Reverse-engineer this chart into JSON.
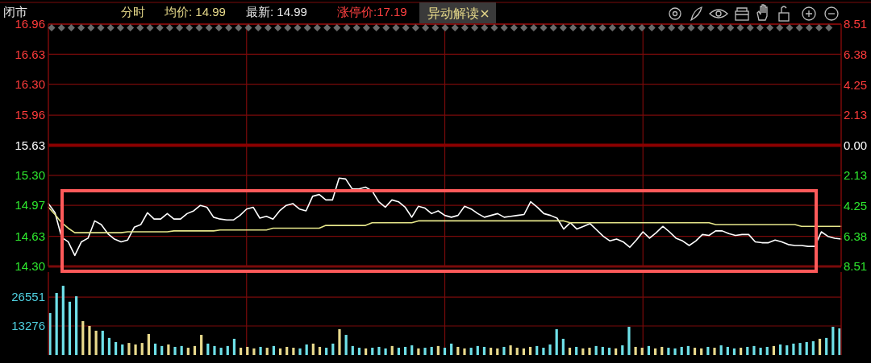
{
  "chart_data": [
    {
      "type": "line",
      "annotations": [
        "闭市",
        "分时",
        "均价: 14.99",
        "最新: 14.99",
        "涨停价:17.19",
        "异动解读"
      ],
      "categories": [
        null,
        null,
        null,
        null,
        null,
        null,
        null,
        null,
        null,
        null,
        null,
        null,
        null,
        null,
        null,
        null,
        null,
        null,
        null,
        null,
        null,
        null,
        null,
        null,
        null,
        null,
        null,
        null,
        null,
        null,
        null,
        null,
        null,
        null,
        null,
        null,
        null,
        null,
        null,
        null,
        null,
        null,
        null,
        null,
        null,
        null,
        null,
        null,
        null,
        null,
        null,
        null,
        null,
        null,
        null,
        null,
        null,
        null,
        null,
        null,
        null,
        null,
        null,
        null,
        null,
        null,
        null,
        null,
        null,
        null,
        null,
        null,
        null,
        null,
        null,
        null,
        null,
        null,
        null,
        null,
        null,
        null,
        null,
        null,
        null,
        null,
        null,
        null,
        null,
        null,
        null,
        null,
        null,
        null,
        null,
        null,
        null,
        null,
        null,
        null,
        null,
        null,
        null,
        null,
        null,
        null,
        null,
        null,
        null,
        null,
        null,
        null,
        null,
        null,
        null,
        null,
        null,
        null,
        null,
        null,
        null
      ],
      "series": [
        {
          "color": "#ffffff",
          "values": [
            14.99,
            14.89,
            14.62,
            14.57,
            14.42,
            14.57,
            14.61,
            14.8,
            14.76,
            14.66,
            14.6,
            14.57,
            14.59,
            14.73,
            14.76,
            14.89,
            14.82,
            14.82,
            14.88,
            14.82,
            14.82,
            14.88,
            14.91,
            14.97,
            14.95,
            14.84,
            14.82,
            14.81,
            14.81,
            14.86,
            14.93,
            14.95,
            14.83,
            14.85,
            14.82,
            14.91,
            14.97,
            14.99,
            14.93,
            14.91,
            15.07,
            15.09,
            15.03,
            15.03,
            15.27,
            15.26,
            15.15,
            15.15,
            15.17,
            15.13,
            15.01,
            14.95,
            15.03,
            15.01,
            14.95,
            14.84,
            14.96,
            14.94,
            14.88,
            14.91,
            14.86,
            14.84,
            14.86,
            14.96,
            14.93,
            14.88,
            14.84,
            14.86,
            14.88,
            14.84,
            14.85,
            14.86,
            14.87,
            15.01,
            14.95,
            14.88,
            14.86,
            14.83,
            14.71,
            14.78,
            14.71,
            14.74,
            14.77,
            14.7,
            14.63,
            14.58,
            14.6,
            14.57,
            14.51,
            14.59,
            14.68,
            14.61,
            14.67,
            14.74,
            14.68,
            14.61,
            14.58,
            14.53,
            14.58,
            14.65,
            14.64,
            14.69,
            14.69,
            14.66,
            14.64,
            14.65,
            14.65,
            14.57,
            14.56,
            14.56,
            14.59,
            14.57,
            14.54,
            14.53,
            14.53,
            14.52,
            14.52,
            14.68,
            14.63,
            14.61,
            14.6
          ]
        },
        {
          "color": "#e6e68a",
          "values": [
            14.95,
            14.87,
            14.78,
            14.72,
            14.67,
            14.67,
            14.67,
            14.67,
            14.67,
            14.67,
            14.67,
            14.67,
            14.68,
            14.68,
            14.68,
            14.68,
            14.68,
            14.68,
            14.68,
            14.69,
            14.69,
            14.69,
            14.69,
            14.69,
            14.69,
            14.69,
            14.7,
            14.7,
            14.7,
            14.7,
            14.7,
            14.7,
            14.7,
            14.7,
            14.72,
            14.72,
            14.72,
            14.72,
            14.72,
            14.72,
            14.72,
            14.72,
            14.75,
            14.75,
            14.75,
            14.75,
            14.75,
            14.75,
            14.75,
            14.78,
            14.78,
            14.78,
            14.78,
            14.78,
            14.78,
            14.78,
            14.8,
            14.8,
            14.8,
            14.8,
            14.8,
            14.8,
            14.8,
            14.8,
            14.8,
            14.8,
            14.8,
            14.8,
            14.8,
            14.8,
            14.8,
            14.8,
            14.8,
            14.8,
            14.8,
            14.8,
            14.8,
            14.8,
            14.8,
            14.78,
            14.78,
            14.78,
            14.78,
            14.78,
            14.78,
            14.78,
            14.78,
            14.78,
            14.78,
            14.78,
            14.78,
            14.78,
            14.78,
            14.78,
            14.78,
            14.78,
            14.78,
            14.78,
            14.78,
            14.78,
            14.78,
            14.76,
            14.76,
            14.76,
            14.76,
            14.76,
            14.76,
            14.76,
            14.76,
            14.76,
            14.76,
            14.76,
            14.76,
            14.76,
            14.74,
            14.74,
            14.74,
            14.74,
            14.74,
            14.74,
            14.74
          ]
        }
      ],
      "ylim": [
        14.3,
        16.96
      ],
      "yticks": [
        {
          "value": 14.3,
          "label": "14.30"
        },
        14.63,
        14.97,
        {
          "value": 15.3,
          "label": "15.30"
        },
        15.63,
        15.96,
        {
          "value": 16.3,
          "label": "16.30"
        },
        16.63,
        16.96
      ],
      "y2lim": [
        -8.51,
        8.51
      ],
      "y2ticks": [
        {
          "value": -8.51,
          "label": "8.51"
        },
        {
          "value": -6.38,
          "label": "6.38"
        },
        {
          "value": -4.25,
          "label": "4.25"
        },
        {
          "value": -2.13,
          "label": "2.13"
        },
        {
          "value": 0,
          "label": "0.00"
        },
        2.13,
        4.25,
        6.38,
        8.51
      ],
      "ref_lines": [
        {
          "axis": "y",
          "value": 15.63,
          "color": "#8b0000"
        }
      ],
      "grid": true
    },
    {
      "type": "bar",
      "categories": [
        null,
        null,
        null,
        null,
        null,
        null,
        null,
        null,
        null,
        null,
        null,
        null,
        null,
        null,
        null,
        null,
        null,
        null,
        null,
        null,
        null,
        null,
        null,
        null,
        null,
        null,
        null,
        null,
        null,
        null,
        null,
        null,
        null,
        null,
        null,
        null,
        null,
        null,
        null,
        null,
        null,
        null,
        null,
        null,
        null,
        null,
        null,
        null,
        null,
        null,
        null,
        null,
        null,
        null,
        null,
        null,
        null,
        null,
        null,
        null,
        null,
        null,
        null,
        null,
        null,
        null,
        null,
        null,
        null,
        null,
        null,
        null,
        null,
        null,
        null,
        null,
        null,
        null,
        null,
        null,
        null,
        null,
        null,
        null,
        null,
        null,
        null,
        null,
        null,
        null,
        null,
        null,
        null,
        null,
        null,
        null,
        null,
        null,
        null,
        null,
        null,
        null,
        null,
        null,
        null,
        null,
        null,
        null,
        null,
        null,
        null,
        null,
        null,
        null,
        null,
        null,
        null,
        null,
        null,
        null,
        null
      ],
      "values": [
        19200,
        28400,
        31700,
        24400,
        26900,
        15500,
        13300,
        11100,
        11100,
        7800,
        5900,
        4800,
        5500,
        4800,
        5500,
        9600,
        5200,
        4100,
        4800,
        3700,
        4100,
        3300,
        4100,
        9200,
        5200,
        4100,
        3300,
        4100,
        7400,
        3300,
        3700,
        3000,
        3700,
        3300,
        4100,
        3000,
        3700,
        3300,
        3000,
        4800,
        5200,
        3700,
        3300,
        5200,
        11800,
        9200,
        4100,
        3300,
        3000,
        3300,
        3700,
        3000,
        4100,
        3300,
        3700,
        4400,
        3000,
        3300,
        3700,
        4100,
        3300,
        5200,
        3700,
        3000,
        3300,
        4100,
        3700,
        3300,
        3000,
        3700,
        4400,
        3300,
        3000,
        3700,
        4100,
        3300,
        4800,
        11800,
        7400,
        3300,
        3700,
        3000,
        3300,
        4100,
        3700,
        3300,
        3000,
        4400,
        12900,
        3700,
        3300,
        4100,
        3000,
        3700,
        3300,
        3000,
        3700,
        4100,
        3300,
        3000,
        3700,
        3300,
        4400,
        3700,
        3000,
        3300,
        3700,
        4100,
        3300,
        3700,
        4100,
        4800,
        4400,
        5200,
        5500,
        5900,
        6300,
        7400,
        7800,
        12900,
        12200
      ],
      "colors": [
        "#6ee0e8",
        "#6ee0e8",
        "#6ee0e8",
        "#6ee0e8",
        "#6ee0e8",
        "#e8d98c",
        "#e8d98c",
        "#e8d98c",
        "#6ee0e8",
        "#6ee0e8",
        "#6ee0e8",
        "#6ee0e8",
        "#e8d98c",
        "#e8d98c",
        "#e8d98c",
        "#e8d98c",
        "#6ee0e8",
        "#6ee0e8",
        "#e8d98c",
        "#6ee0e8",
        "#6ee0e8",
        "#e8d98c",
        "#e8d98c",
        "#e8d98c",
        "#6ee0e8",
        "#6ee0e8",
        "#6ee0e8",
        "#6ee0e8",
        "#6ee0e8",
        "#e8d98c",
        "#e8d98c",
        "#e8d98c",
        "#6ee0e8",
        "#e8d98c",
        "#6ee0e8",
        "#e8d98c",
        "#e8d98c",
        "#e8d98c",
        "#6ee0e8",
        "#6ee0e8",
        "#e8d98c",
        "#e8d98c",
        "#6ee0e8",
        "#6ee0e8",
        "#e8d98c",
        "#6ee0e8",
        "#6ee0e8",
        "#6ee0e8",
        "#e8d98c",
        "#6ee0e8",
        "#6ee0e8",
        "#6ee0e8",
        "#e8d98c",
        "#6ee0e8",
        "#6ee0e8",
        "#6ee0e8",
        "#e8d98c",
        "#6ee0e8",
        "#6ee0e8",
        "#e8d98c",
        "#6ee0e8",
        "#6ee0e8",
        "#e8d98c",
        "#e8d98c",
        "#6ee0e8",
        "#6ee0e8",
        "#6ee0e8",
        "#e8d98c",
        "#e8d98c",
        "#6ee0e8",
        "#e8d98c",
        "#e8d98c",
        "#e8d98c",
        "#e8d98c",
        "#6ee0e8",
        "#6ee0e8",
        "#6ee0e8",
        "#6ee0e8",
        "#6ee0e8",
        "#e8d98c",
        "#6ee0e8",
        "#e8d98c",
        "#e8d98c",
        "#6ee0e8",
        "#6ee0e8",
        "#6ee0e8",
        "#e8d98c",
        "#6ee0e8",
        "#6ee0e8",
        "#e8d98c",
        "#e8d98c",
        "#6ee0e8",
        "#e8d98c",
        "#e8d98c",
        "#6ee0e8",
        "#6ee0e8",
        "#6ee0e8",
        "#6ee0e8",
        "#e8d98c",
        "#e8d98c",
        "#6ee0e8",
        "#e8d98c",
        "#6ee0e8",
        "#6ee0e8",
        "#6ee0e8",
        "#e8d98c",
        "#6ee0e8",
        "#6ee0e8",
        "#6ee0e8",
        "#6ee0e8",
        "#e8d98c",
        "#6ee0e8",
        "#6ee0e8",
        "#6ee0e8",
        "#6ee0e8",
        "#6ee0e8",
        "#6ee0e8",
        "#e8d98c",
        "#6ee0e8",
        "#6ee0e8",
        "#6ee0e8"
      ],
      "ylim": [
        0,
        38000
      ],
      "yticks": [
        13276,
        26551
      ],
      "grid": true
    }
  ]
}
